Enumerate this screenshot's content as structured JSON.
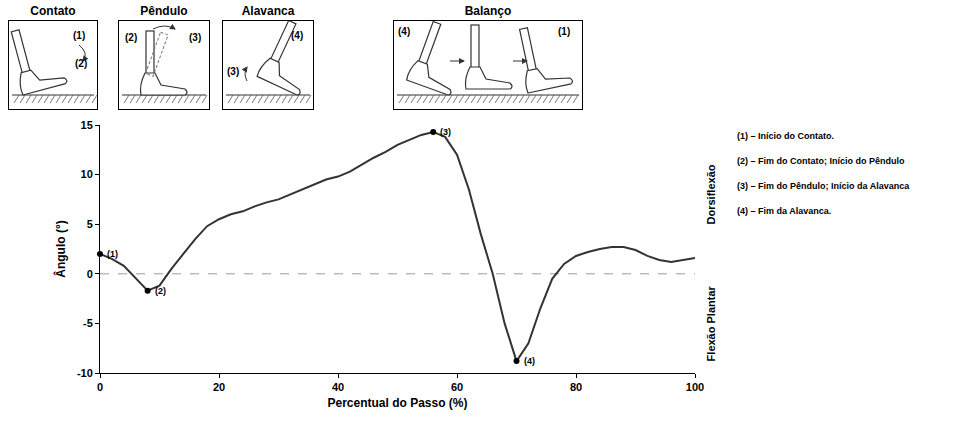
{
  "chart_data": {
    "type": "line",
    "xlabel": "Percentual do Passo (%)",
    "ylabel": "Ângulo (°)",
    "color": "#333333",
    "marker": "circle",
    "grid": false,
    "xlim": [
      0,
      100
    ],
    "ylim": [
      -10,
      15
    ],
    "xticks": [
      0,
      20,
      40,
      60,
      80,
      100
    ],
    "yticks": [
      -10,
      -5,
      0,
      5,
      10,
      15
    ],
    "reference_y": 0,
    "x": [
      0,
      2,
      4,
      6,
      8,
      10,
      12,
      14,
      16,
      18,
      20,
      22,
      24,
      26,
      28,
      30,
      32,
      34,
      36,
      38,
      40,
      42,
      44,
      46,
      48,
      50,
      52,
      54,
      56,
      58,
      60,
      62,
      64,
      66,
      68,
      70,
      72,
      74,
      76,
      78,
      80,
      82,
      84,
      86,
      88,
      90,
      92,
      94,
      96,
      98,
      100
    ],
    "values": [
      2.0,
      1.5,
      0.8,
      -0.5,
      -1.7,
      -1.2,
      0.5,
      2.0,
      3.5,
      4.8,
      5.5,
      6.0,
      6.3,
      6.8,
      7.2,
      7.5,
      8.0,
      8.5,
      9.0,
      9.5,
      9.8,
      10.3,
      11.0,
      11.7,
      12.3,
      13.0,
      13.5,
      14.0,
      14.3,
      13.8,
      12.0,
      8.5,
      4.0,
      0.0,
      -5.0,
      -8.8,
      -7.0,
      -3.5,
      -0.5,
      1.0,
      1.8,
      2.2,
      2.5,
      2.7,
      2.7,
      2.4,
      1.8,
      1.4,
      1.2,
      1.4,
      1.6
    ],
    "points": [
      {
        "x": 0,
        "y": 2.0,
        "label": "(1)"
      },
      {
        "x": 8,
        "y": -1.7,
        "label": "(2)"
      },
      {
        "x": 56,
        "y": 14.3,
        "label": "(3)"
      },
      {
        "x": 70,
        "y": -8.8,
        "label": "(4)"
      }
    ],
    "side_labels": {
      "upper": "Dorsiflexão",
      "lower": "Flexão Plantar"
    },
    "notes": [
      "(1) – Início do Contato.",
      "(2) – Fim do Contato; Início do Pêndulo",
      "(3) – Fim do Pêndulo; Início da Alavanca",
      "(4) – Fim da Alavanca."
    ]
  },
  "phases": [
    {
      "title": "Contato",
      "marks": [
        "(1)",
        "(2)"
      ]
    },
    {
      "title": "Pêndulo",
      "marks": [
        "(2)",
        "(3)"
      ]
    },
    {
      "title": "Alavanca",
      "marks": [
        "(3)",
        "(4)"
      ]
    },
    {
      "title": "Balanço",
      "marks": [
        "(4)",
        "(1)"
      ]
    }
  ]
}
